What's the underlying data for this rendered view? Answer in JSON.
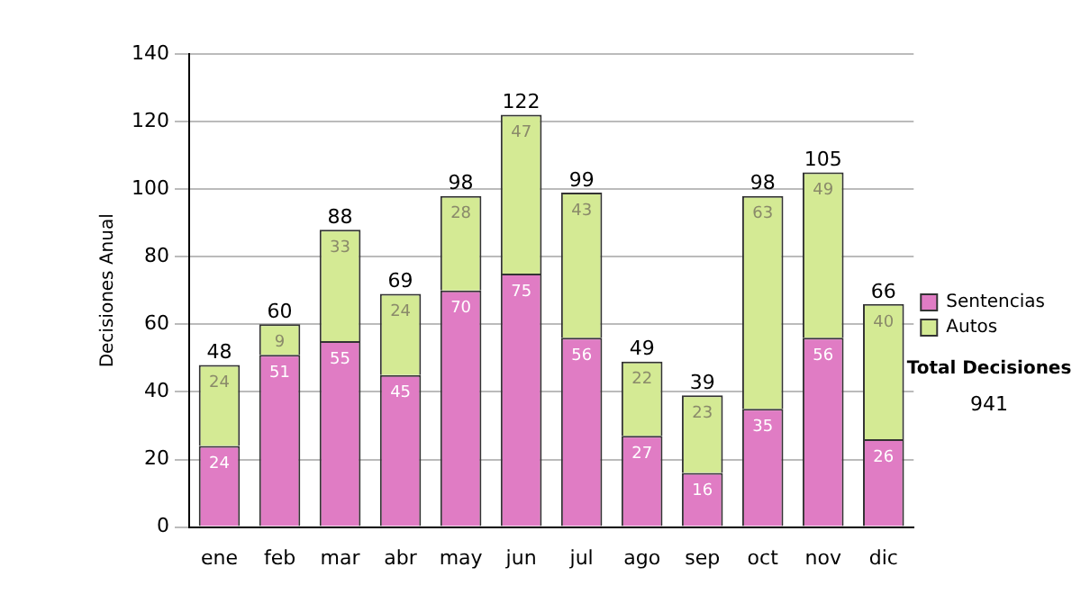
{
  "chart_data": {
    "type": "bar",
    "stacked": true,
    "ylabel": "Decisiones Anual",
    "categories": [
      "ene",
      "feb",
      "mar",
      "abr",
      "may",
      "jun",
      "jul",
      "ago",
      "sep",
      "oct",
      "nov",
      "dic"
    ],
    "series": [
      {
        "name": "Sentencias",
        "color": "#e07cc4",
        "values": [
          24,
          51,
          55,
          45,
          70,
          75,
          56,
          27,
          16,
          35,
          56,
          26
        ]
      },
      {
        "name": "Autos",
        "color": "#d4ea94",
        "values": [
          24,
          9,
          33,
          24,
          28,
          47,
          43,
          22,
          23,
          63,
          49,
          40
        ]
      }
    ],
    "ylim": [
      0,
      140
    ],
    "yticks": [
      0,
      20,
      40,
      60,
      80,
      100,
      120,
      140
    ],
    "grid": "y",
    "legend": "right",
    "data_labels": true,
    "totals": [
      "48",
      "60",
      "88",
      "69",
      "98",
      "122",
      "99",
      "49",
      "39",
      "98",
      "105",
      "66"
    ],
    "annotations": [
      "Total Decisiones",
      "941"
    ]
  }
}
